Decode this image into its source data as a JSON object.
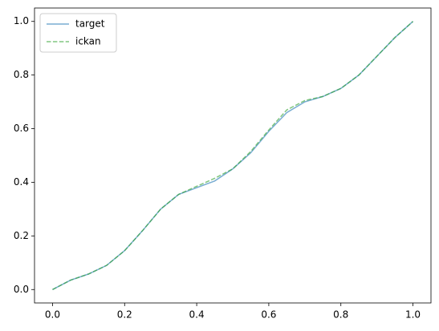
{
  "chart_data": {
    "type": "line",
    "x": [
      0,
      0.05,
      0.1,
      0.15,
      0.2,
      0.25,
      0.3,
      0.35,
      0.4,
      0.45,
      0.5,
      0.55,
      0.6,
      0.65,
      0.7,
      0.75,
      0.8,
      0.85,
      0.9,
      0.95,
      1.0
    ],
    "series": [
      {
        "name": "target",
        "color": "#1f77b4",
        "dash": false,
        "values": [
          0.0,
          0.035,
          0.058,
          0.09,
          0.145,
          0.22,
          0.3,
          0.355,
          0.38,
          0.405,
          0.45,
          0.51,
          0.59,
          0.66,
          0.7,
          0.72,
          0.75,
          0.8,
          0.87,
          0.94,
          1.0
        ]
      },
      {
        "name": "ickan",
        "color": "#2ca02c",
        "dash": true,
        "values": [
          0.0,
          0.035,
          0.058,
          0.09,
          0.145,
          0.22,
          0.3,
          0.355,
          0.385,
          0.415,
          0.45,
          0.515,
          0.595,
          0.67,
          0.705,
          0.72,
          0.75,
          0.8,
          0.87,
          0.94,
          1.0
        ]
      }
    ],
    "xlim": [
      -0.05,
      1.05
    ],
    "ylim": [
      -0.05,
      1.05
    ],
    "xticks": [
      {
        "value": 0,
        "label": "0.0"
      },
      0.2,
      0.4,
      0.6,
      0.8,
      {
        "value": 1,
        "label": "1.0"
      }
    ],
    "yticks": [
      {
        "value": 0,
        "label": "0.0"
      },
      0.2,
      0.4,
      0.6,
      0.8,
      {
        "value": 1,
        "label": "1.0"
      }
    ],
    "legend": "upper left"
  }
}
